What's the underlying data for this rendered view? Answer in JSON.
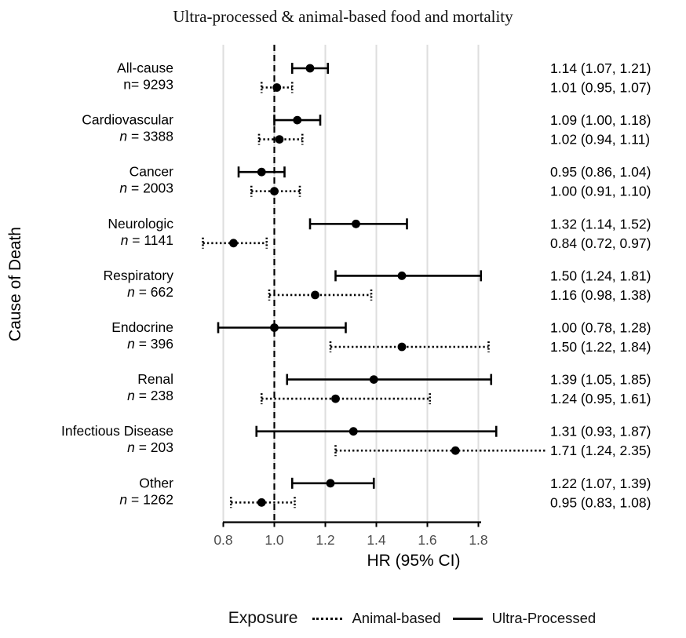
{
  "title": "Ultra-processed & animal-based food and mortality",
  "colors": {
    "line": "#000000",
    "grid": "#dedede",
    "tick_label": "#4d4d4d",
    "background": "#ffffff"
  },
  "legend": {
    "title": "Exposure",
    "items": [
      {
        "label": "Animal-based",
        "line_style": "dotted"
      },
      {
        "label": "Ultra-Processed",
        "line_style": "solid"
      }
    ]
  },
  "chart_data": {
    "type": "forest",
    "title": "Ultra-processed & animal-based food and mortality",
    "xlabel": "HR (95% CI)",
    "ylabel": "Cause of Death",
    "x_ticks": [
      "0.8",
      "1.0",
      "1.2",
      "1.4",
      "1.6",
      "1.8"
    ],
    "x_tick_values": [
      0.8,
      1.0,
      1.2,
      1.4,
      1.6,
      1.8
    ],
    "xlim": [
      0.72,
      2.35
    ],
    "reference_line": 1.0,
    "grid": true,
    "legend_position": "bottom",
    "series": [
      "Ultra-Processed",
      "Animal-based"
    ],
    "groups": [
      {
        "cause": "All-cause",
        "n_prefix": "n",
        "n_rest": "= 9293",
        "n_italic": false,
        "ultra_processed": {
          "hr": 1.14,
          "lo": 1.07,
          "hi": 1.21,
          "label": "1.14 (1.07, 1.21)"
        },
        "animal_based": {
          "hr": 1.01,
          "lo": 0.95,
          "hi": 1.07,
          "label": "1.01 (0.95, 1.07)"
        }
      },
      {
        "cause": "Cardiovascular",
        "n_prefix": "n",
        "n_rest": " = 3388",
        "n_italic": true,
        "ultra_processed": {
          "hr": 1.09,
          "lo": 1.0,
          "hi": 1.18,
          "label": "1.09 (1.00, 1.18)"
        },
        "animal_based": {
          "hr": 1.02,
          "lo": 0.94,
          "hi": 1.11,
          "label": "1.02 (0.94, 1.11)"
        }
      },
      {
        "cause": "Cancer",
        "n_prefix": "n",
        "n_rest": " = 2003",
        "n_italic": true,
        "ultra_processed": {
          "hr": 0.95,
          "lo": 0.86,
          "hi": 1.04,
          "label": "0.95 (0.86, 1.04)"
        },
        "animal_based": {
          "hr": 1.0,
          "lo": 0.91,
          "hi": 1.1,
          "label": "1.00 (0.91, 1.10)"
        }
      },
      {
        "cause": "Neurologic",
        "n_prefix": "n",
        "n_rest": " = 1141",
        "n_italic": true,
        "ultra_processed": {
          "hr": 1.32,
          "lo": 1.14,
          "hi": 1.52,
          "label": "1.32 (1.14, 1.52)"
        },
        "animal_based": {
          "hr": 0.84,
          "lo": 0.72,
          "hi": 0.97,
          "label": "0.84 (0.72, 0.97)"
        }
      },
      {
        "cause": "Respiratory",
        "n_prefix": "n",
        "n_rest": " = 662",
        "n_italic": true,
        "ultra_processed": {
          "hr": 1.5,
          "lo": 1.24,
          "hi": 1.81,
          "label": "1.50 (1.24, 1.81)"
        },
        "animal_based": {
          "hr": 1.16,
          "lo": 0.98,
          "hi": 1.38,
          "label": "1.16 (0.98, 1.38)"
        }
      },
      {
        "cause": "Endocrine",
        "n_prefix": "n",
        "n_rest": " = 396",
        "n_italic": true,
        "ultra_processed": {
          "hr": 1.0,
          "lo": 0.78,
          "hi": 1.28,
          "label": "1.00 (0.78, 1.28)"
        },
        "animal_based": {
          "hr": 1.5,
          "lo": 1.22,
          "hi": 1.84,
          "label": "1.50 (1.22, 1.84)"
        }
      },
      {
        "cause": "Renal",
        "n_prefix": "n",
        "n_rest": " = 238",
        "n_italic": true,
        "ultra_processed": {
          "hr": 1.39,
          "lo": 1.05,
          "hi": 1.85,
          "label": "1.39 (1.05, 1.85)"
        },
        "animal_based": {
          "hr": 1.24,
          "lo": 0.95,
          "hi": 1.61,
          "label": "1.24 (0.95, 1.61)"
        }
      },
      {
        "cause": "Infectious Disease",
        "n_prefix": "n",
        "n_rest": " = 203",
        "n_italic": true,
        "ultra_processed": {
          "hr": 1.31,
          "lo": 0.93,
          "hi": 1.87,
          "label": "1.31 (0.93, 1.87)"
        },
        "animal_based": {
          "hr": 1.71,
          "lo": 1.24,
          "hi": 2.35,
          "label": "1.71 (1.24, 2.35)"
        }
      },
      {
        "cause": "Other",
        "n_prefix": "n",
        "n_rest": " = 1262",
        "n_italic": true,
        "ultra_processed": {
          "hr": 1.22,
          "lo": 1.07,
          "hi": 1.39,
          "label": "1.22 (1.07, 1.39)"
        },
        "animal_based": {
          "hr": 0.95,
          "lo": 0.83,
          "hi": 1.08,
          "label": "0.95 (0.83, 1.08)"
        }
      }
    ]
  }
}
